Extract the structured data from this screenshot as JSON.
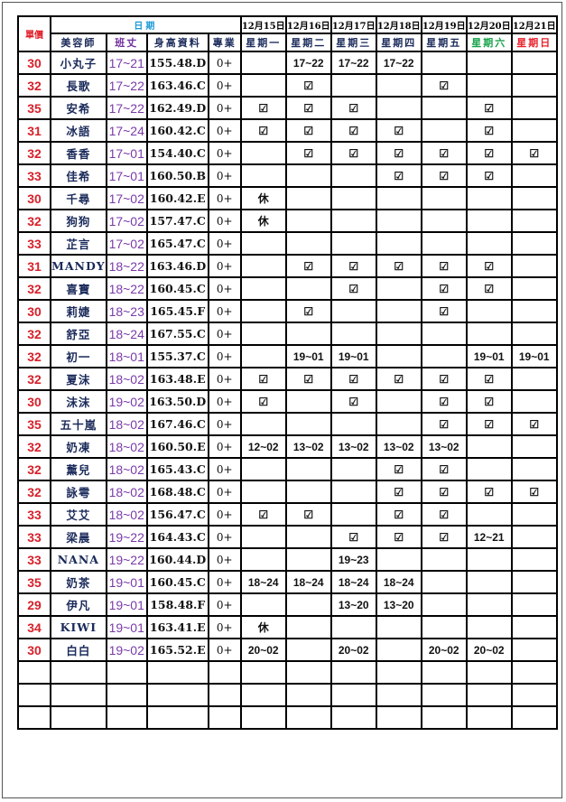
{
  "header": {
    "price": "單價",
    "date_group": "日期",
    "columns": [
      "美容師",
      "班丈",
      "身高資料",
      "專業"
    ],
    "dates": [
      "12月15日",
      "12月16日",
      "12月17日",
      "12月18日",
      "12月19日",
      "12月20日",
      "12月21日"
    ],
    "weekdays": [
      "星期一",
      "星期二",
      "星期三",
      "星期四",
      "星期五",
      "星期六",
      "星期日"
    ]
  },
  "colors": {
    "price": "#d8202a",
    "date_group": "#1b9ad6",
    "class": "#7a3aa8",
    "saturday": "#17a34a",
    "sunday": "#e8202a"
  },
  "check_icon": "checkbox-checked-icon",
  "rows": [
    {
      "price": "30",
      "name": "小丸子",
      "cls": "17~21",
      "height": "155.48.D",
      "pro": "0+",
      "days": [
        "",
        "17~22",
        "17~22",
        "17~22",
        "",
        "",
        ""
      ]
    },
    {
      "price": "32",
      "name": "長歌",
      "cls": "17~22",
      "height": "163.46.C",
      "pro": "0+",
      "days": [
        "",
        "☑",
        "",
        "",
        "☑",
        "",
        ""
      ]
    },
    {
      "price": "35",
      "name": "安希",
      "cls": "17~22",
      "height": "162.49.D",
      "pro": "0+",
      "days": [
        "☑",
        "☑",
        "☑",
        "",
        "",
        "☑",
        ""
      ]
    },
    {
      "price": "31",
      "name": "冰語",
      "cls": "17~24",
      "height": "160.42.C",
      "pro": "0+",
      "days": [
        "☑",
        "☑",
        "☑",
        "☑",
        "",
        "☑",
        ""
      ]
    },
    {
      "price": "32",
      "name": "香香",
      "cls": "17~01",
      "height": "154.40.C",
      "pro": "0+",
      "days": [
        "",
        "☑",
        "☑",
        "☑",
        "☑",
        "☑",
        "☑"
      ]
    },
    {
      "price": "33",
      "name": "佳希",
      "cls": "17~01",
      "height": "160.50.B",
      "pro": "0+",
      "days": [
        "",
        "",
        "",
        "☑",
        "☑",
        "☑",
        ""
      ]
    },
    {
      "price": "30",
      "name": "千尋",
      "cls": "17~02",
      "height": "160.42.E",
      "pro": "0+",
      "days": [
        "休",
        "",
        "",
        "",
        "",
        "",
        ""
      ]
    },
    {
      "price": "32",
      "name": "狗狗",
      "cls": "17~02",
      "height": "157.47.C",
      "pro": "0+",
      "days": [
        "休",
        "",
        "",
        "",
        "",
        "",
        ""
      ]
    },
    {
      "price": "33",
      "name": "芷言",
      "cls": "17~02",
      "height": "165.47.C",
      "pro": "0+",
      "days": [
        "",
        "",
        "",
        "",
        "",
        "",
        ""
      ]
    },
    {
      "price": "31",
      "name": "MANDY",
      "cls": "18~22",
      "height": "163.46.D",
      "pro": "0+",
      "days": [
        "",
        "☑",
        "☑",
        "☑",
        "☑",
        "☑",
        ""
      ]
    },
    {
      "price": "32",
      "name": "喜寶",
      "cls": "18~22",
      "height": "160.45.C",
      "pro": "0+",
      "days": [
        "",
        "",
        "☑",
        "",
        "☑",
        "☑",
        ""
      ]
    },
    {
      "price": "30",
      "name": "莉婕",
      "cls": "18~23",
      "height": "165.45.F",
      "pro": "0+",
      "days": [
        "",
        "☑",
        "",
        "",
        "☑",
        "",
        ""
      ]
    },
    {
      "price": "32",
      "name": "舒亞",
      "cls": "18~24",
      "height": "167.55.C",
      "pro": "0+",
      "days": [
        "",
        "",
        "",
        "",
        "",
        "",
        ""
      ]
    },
    {
      "price": "32",
      "name": "初一",
      "cls": "18~01",
      "height": "155.37.C",
      "pro": "0+",
      "days": [
        "",
        "19~01",
        "19~01",
        "",
        "",
        "19~01",
        "19~01"
      ]
    },
    {
      "price": "32",
      "name": "夏沫",
      "cls": "18~02",
      "height": "163.48.E",
      "pro": "0+",
      "days": [
        "☑",
        "☑",
        "☑",
        "☑",
        "☑",
        "☑",
        ""
      ]
    },
    {
      "price": "30",
      "name": "沫沫",
      "cls": "19~02",
      "height": "163.50.D",
      "pro": "0+",
      "days": [
        "☑",
        "",
        "☑",
        "",
        "☑",
        "☑",
        ""
      ]
    },
    {
      "price": "35",
      "name": "五十嵐",
      "cls": "18~02",
      "height": "167.46.C",
      "pro": "0+",
      "days": [
        "",
        "",
        "",
        "",
        "☑",
        "☑",
        "☑"
      ]
    },
    {
      "price": "32",
      "name": "奶凍",
      "cls": "18~02",
      "height": "160.50.E",
      "pro": "0+",
      "days": [
        "12~02",
        "13~02",
        "13~02",
        "13~02",
        "13~02",
        "",
        ""
      ]
    },
    {
      "price": "32",
      "name": "薰兒",
      "cls": "18~02",
      "height": "165.43.C",
      "pro": "0+",
      "days": [
        "",
        "",
        "",
        "☑",
        "☑",
        "",
        ""
      ]
    },
    {
      "price": "32",
      "name": "詠雩",
      "cls": "18~02",
      "height": "168.48.C",
      "pro": "0+",
      "days": [
        "",
        "",
        "",
        "☑",
        "☑",
        "☑",
        "☑"
      ]
    },
    {
      "price": "33",
      "name": "艾艾",
      "cls": "18~02",
      "height": "156.47.C",
      "pro": "0+",
      "days": [
        "☑",
        "☑",
        "",
        "☑",
        "☑",
        "",
        ""
      ]
    },
    {
      "price": "33",
      "name": "梁晨",
      "cls": "19~22",
      "height": "164.43.C",
      "pro": "0+",
      "days": [
        "",
        "",
        "☑",
        "☑",
        "☑",
        "12~21",
        ""
      ]
    },
    {
      "price": "33",
      "name": "NANA",
      "cls": "19~22",
      "height": "160.44.D",
      "pro": "0+",
      "days": [
        "",
        "",
        "19~23",
        "",
        "",
        "",
        ""
      ]
    },
    {
      "price": "35",
      "name": "奶茶",
      "cls": "19~01",
      "height": "160.45.C",
      "pro": "0+",
      "days": [
        "18~24",
        "18~24",
        "18~24",
        "18~24",
        "",
        "",
        ""
      ]
    },
    {
      "price": "29",
      "name": "伊凡",
      "cls": "19~01",
      "height": "158.48.F",
      "pro": "0+",
      "days": [
        "",
        "",
        "13~20",
        "13~20",
        "",
        "",
        ""
      ]
    },
    {
      "price": "34",
      "name": "KIWI",
      "cls": "19~01",
      "height": "163.41.E",
      "pro": "0+",
      "days": [
        "休",
        "",
        "",
        "",
        "",
        "",
        ""
      ]
    },
    {
      "price": "30",
      "name": "白白",
      "cls": "19~02",
      "height": "165.52.E",
      "pro": "0+",
      "days": [
        "20~02",
        "",
        "20~02",
        "",
        "20~02",
        "20~02",
        ""
      ]
    }
  ],
  "empty_rows": 3
}
